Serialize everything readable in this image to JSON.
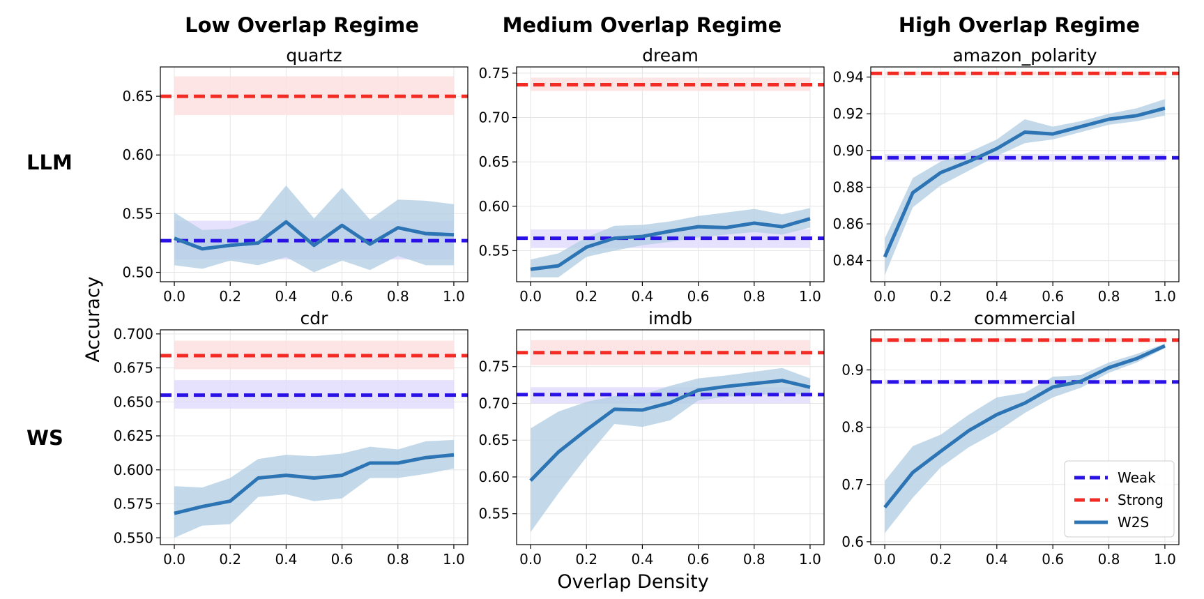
{
  "figure": {
    "column_titles": [
      "Low Overlap Regime",
      "Medium Overlap Regime",
      "High Overlap Regime"
    ],
    "row_labels": [
      "LLM",
      "WS"
    ],
    "xlabel": "Overlap Density",
    "ylabel": "Accuracy"
  },
  "legend": {
    "placement": "lower-right of bottom-right panel",
    "entries": [
      {
        "label": "Weak",
        "style": "dashed",
        "color": "#2a12e6"
      },
      {
        "label": "Strong",
        "style": "dashed",
        "color": "#f22b24"
      },
      {
        "label": "W2S",
        "style": "solid",
        "color": "#2c74b4"
      }
    ]
  },
  "colors": {
    "weak": "#2a12e6",
    "strong": "#f22b24",
    "w2s": "#2c74b4",
    "weak_band": "#e2dcfb",
    "strong_band": "#fde0e0",
    "w2s_band": "#b4cfe3"
  },
  "chart_data": [
    {
      "type": "line",
      "title": "quartz",
      "row": "LLM",
      "col": 0,
      "x": [
        0.0,
        0.1,
        0.2,
        0.3,
        0.4,
        0.5,
        0.6,
        0.7,
        0.8,
        0.9,
        1.0
      ],
      "xlim": [
        -0.05,
        1.05
      ],
      "xticks": [
        0.0,
        0.2,
        0.4,
        0.6,
        0.8,
        1.0
      ],
      "xtick_labels": [
        "0.0",
        "0.2",
        "0.4",
        "0.6",
        "0.8",
        "1.0"
      ],
      "ylim": [
        0.492,
        0.675
      ],
      "yticks": [
        0.5,
        0.55,
        0.6,
        0.65
      ],
      "ytick_labels": [
        "0.50",
        "0.55",
        "0.60",
        "0.65"
      ],
      "weak": {
        "value": 0.527,
        "lower": 0.511,
        "upper": 0.544
      },
      "strong": {
        "value": 0.65,
        "lower": 0.634,
        "upper": 0.667
      },
      "w2s": {
        "values": [
          0.529,
          0.52,
          0.523,
          0.525,
          0.543,
          0.523,
          0.54,
          0.524,
          0.538,
          0.533,
          0.532
        ],
        "lower": [
          0.506,
          0.503,
          0.51,
          0.506,
          0.513,
          0.5,
          0.51,
          0.502,
          0.514,
          0.506,
          0.506
        ],
        "upper": [
          0.551,
          0.536,
          0.537,
          0.545,
          0.574,
          0.546,
          0.572,
          0.545,
          0.562,
          0.561,
          0.558
        ]
      },
      "grid": true
    },
    {
      "type": "line",
      "title": "dream",
      "row": "LLM",
      "col": 1,
      "x": [
        0.0,
        0.1,
        0.2,
        0.3,
        0.4,
        0.5,
        0.6,
        0.7,
        0.8,
        0.9,
        1.0
      ],
      "xlim": [
        -0.05,
        1.05
      ],
      "xticks": [
        0.0,
        0.2,
        0.4,
        0.6,
        0.8,
        1.0
      ],
      "xtick_labels": [
        "0.0",
        "0.2",
        "0.4",
        "0.6",
        "0.8",
        "1.0"
      ],
      "ylim": [
        0.515,
        0.757
      ],
      "yticks": [
        0.55,
        0.6,
        0.65,
        0.7,
        0.75
      ],
      "ytick_labels": [
        "0.55",
        "0.60",
        "0.65",
        "0.70",
        "0.75"
      ],
      "weak": {
        "value": 0.564,
        "lower": 0.553,
        "upper": 0.574
      },
      "strong": {
        "value": 0.737,
        "lower": 0.73,
        "upper": 0.745
      },
      "w2s": {
        "values": [
          0.529,
          0.533,
          0.554,
          0.564,
          0.566,
          0.572,
          0.577,
          0.576,
          0.581,
          0.577,
          0.586
        ],
        "lower": [
          0.52,
          0.52,
          0.543,
          0.55,
          0.556,
          0.56,
          0.565,
          0.568,
          0.571,
          0.568,
          0.576
        ],
        "upper": [
          0.54,
          0.547,
          0.565,
          0.578,
          0.579,
          0.583,
          0.589,
          0.593,
          0.597,
          0.591,
          0.598
        ]
      },
      "grid": true
    },
    {
      "type": "line",
      "title": "amazon_polarity",
      "row": "LLM",
      "col": 2,
      "x": [
        0.0,
        0.1,
        0.2,
        0.3,
        0.4,
        0.5,
        0.6,
        0.7,
        0.8,
        0.9,
        1.0
      ],
      "xlim": [
        -0.05,
        1.05
      ],
      "xticks": [
        0.0,
        0.2,
        0.4,
        0.6,
        0.8,
        1.0
      ],
      "xtick_labels": [
        "0.0",
        "0.2",
        "0.4",
        "0.6",
        "0.8",
        "1.0"
      ],
      "ylim": [
        0.8285,
        0.9455
      ],
      "yticks": [
        0.84,
        0.86,
        0.88,
        0.9,
        0.92,
        0.94
      ],
      "ytick_labels": [
        "0.84",
        "0.86",
        "0.88",
        "0.90",
        "0.92",
        "0.94"
      ],
      "weak": {
        "value": 0.896,
        "lower": 0.894,
        "upper": 0.898
      },
      "strong": {
        "value": 0.942,
        "lower": 0.941,
        "upper": 0.943
      },
      "w2s": {
        "values": [
          0.842,
          0.877,
          0.888,
          0.894,
          0.901,
          0.91,
          0.909,
          0.913,
          0.917,
          0.919,
          0.923
        ],
        "lower": [
          0.832,
          0.869,
          0.881,
          0.889,
          0.897,
          0.904,
          0.906,
          0.91,
          0.914,
          0.916,
          0.919
        ],
        "upper": [
          0.852,
          0.885,
          0.894,
          0.899,
          0.906,
          0.917,
          0.913,
          0.916,
          0.92,
          0.923,
          0.928
        ]
      },
      "grid": true
    },
    {
      "type": "line",
      "title": "cdr",
      "row": "WS",
      "col": 0,
      "x": [
        0.0,
        0.1,
        0.2,
        0.3,
        0.4,
        0.5,
        0.6,
        0.7,
        0.8,
        0.9,
        1.0
      ],
      "xlim": [
        -0.05,
        1.05
      ],
      "xticks": [
        0.0,
        0.2,
        0.4,
        0.6,
        0.8,
        1.0
      ],
      "xtick_labels": [
        "0.0",
        "0.2",
        "0.4",
        "0.6",
        "0.8",
        "1.0"
      ],
      "ylim": [
        0.545,
        0.703
      ],
      "yticks": [
        0.55,
        0.575,
        0.6,
        0.625,
        0.65,
        0.675,
        0.7
      ],
      "ytick_labels": [
        "0.550",
        "0.575",
        "0.600",
        "0.625",
        "0.650",
        "0.675",
        "0.700"
      ],
      "weak": {
        "value": 0.655,
        "lower": 0.645,
        "upper": 0.666
      },
      "strong": {
        "value": 0.684,
        "lower": 0.674,
        "upper": 0.695
      },
      "w2s": {
        "values": [
          0.568,
          0.573,
          0.577,
          0.594,
          0.596,
          0.594,
          0.596,
          0.605,
          0.605,
          0.609,
          0.611
        ],
        "lower": [
          0.55,
          0.559,
          0.56,
          0.58,
          0.582,
          0.577,
          0.579,
          0.594,
          0.594,
          0.597,
          0.601
        ],
        "upper": [
          0.588,
          0.587,
          0.594,
          0.608,
          0.611,
          0.61,
          0.612,
          0.617,
          0.615,
          0.621,
          0.622
        ]
      },
      "grid": true
    },
    {
      "type": "line",
      "title": "imdb",
      "row": "WS",
      "col": 1,
      "x": [
        0.0,
        0.1,
        0.2,
        0.3,
        0.4,
        0.5,
        0.6,
        0.7,
        0.8,
        0.9,
        1.0
      ],
      "xlim": [
        -0.05,
        1.05
      ],
      "xticks": [
        0.0,
        0.2,
        0.4,
        0.6,
        0.8,
        1.0
      ],
      "xtick_labels": [
        "0.0",
        "0.2",
        "0.4",
        "0.6",
        "0.8",
        "1.0"
      ],
      "ylim": [
        0.508,
        0.8
      ],
      "yticks": [
        0.55,
        0.6,
        0.65,
        0.7,
        0.75
      ],
      "ytick_labels": [
        "0.55",
        "0.60",
        "0.65",
        "0.70",
        "0.75"
      ],
      "weak": {
        "value": 0.712,
        "lower": 0.7,
        "upper": 0.722
      },
      "strong": {
        "value": 0.769,
        "lower": 0.752,
        "upper": 0.786
      },
      "w2s": {
        "values": [
          0.595,
          0.634,
          0.664,
          0.692,
          0.691,
          0.701,
          0.718,
          0.723,
          0.727,
          0.731,
          0.722
        ],
        "lower": [
          0.525,
          0.578,
          0.627,
          0.672,
          0.668,
          0.677,
          0.704,
          0.709,
          0.711,
          0.714,
          0.711
        ],
        "upper": [
          0.666,
          0.689,
          0.702,
          0.71,
          0.712,
          0.724,
          0.734,
          0.738,
          0.743,
          0.748,
          0.734
        ]
      },
      "grid": true
    },
    {
      "type": "line",
      "title": "commercial",
      "row": "WS",
      "col": 2,
      "x": [
        0.0,
        0.1,
        0.2,
        0.3,
        0.4,
        0.5,
        0.6,
        0.7,
        0.8,
        0.9,
        1.0
      ],
      "xlim": [
        -0.05,
        1.05
      ],
      "xticks": [
        0.0,
        0.2,
        0.4,
        0.6,
        0.8,
        1.0
      ],
      "xtick_labels": [
        "0.0",
        "0.2",
        "0.4",
        "0.6",
        "0.8",
        "1.0"
      ],
      "ylim": [
        0.595,
        0.97
      ],
      "yticks": [
        0.6,
        0.7,
        0.8,
        0.9
      ],
      "ytick_labels": [
        "0.6",
        "0.7",
        "0.8",
        "0.9"
      ],
      "weak": {
        "value": 0.879,
        "lower": 0.875,
        "upper": 0.883
      },
      "strong": {
        "value": 0.952,
        "lower": 0.949,
        "upper": 0.955
      },
      "w2s": {
        "values": [
          0.66,
          0.721,
          0.758,
          0.794,
          0.822,
          0.842,
          0.87,
          0.88,
          0.904,
          0.92,
          0.942
        ],
        "lower": [
          0.615,
          0.677,
          0.73,
          0.765,
          0.792,
          0.825,
          0.852,
          0.869,
          0.895,
          0.913,
          0.938
        ],
        "upper": [
          0.706,
          0.767,
          0.787,
          0.822,
          0.852,
          0.86,
          0.888,
          0.891,
          0.913,
          0.928,
          0.946
        ]
      },
      "grid": true
    }
  ]
}
